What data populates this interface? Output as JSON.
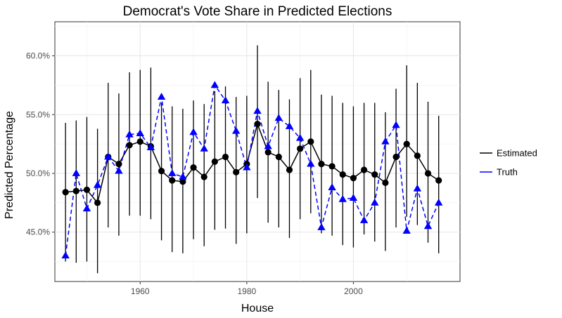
{
  "chart_data": {
    "type": "line",
    "title": "Democrat's Vote Share in Predicted Elections",
    "xlabel": "House",
    "ylabel": "Predicted Percentage",
    "xlim": [
      1944,
      2020
    ],
    "ylim": [
      0.408,
      0.629
    ],
    "x_ticks": [
      1960,
      1980,
      2000
    ],
    "x_tick_labels": [
      "1960",
      "1980",
      "2000"
    ],
    "y_ticks": [
      0.45,
      0.5,
      0.55,
      0.6
    ],
    "y_tick_labels": [
      "45.0%",
      "50.0%",
      "55.0%",
      "60.0%"
    ],
    "grid": true,
    "legend_position": "right",
    "x": [
      1946,
      1948,
      1950,
      1952,
      1954,
      1956,
      1958,
      1960,
      1962,
      1964,
      1966,
      1968,
      1970,
      1972,
      1974,
      1976,
      1978,
      1980,
      1982,
      1984,
      1986,
      1988,
      1990,
      1992,
      1994,
      1996,
      1998,
      2000,
      2002,
      2004,
      2006,
      2008,
      2010,
      2012,
      2014,
      2016
    ],
    "series": [
      {
        "name": "Estimated",
        "color": "#000000",
        "line_style": "solid",
        "marker": "circle",
        "values": [
          0.484,
          0.485,
          0.486,
          0.475,
          0.514,
          0.508,
          0.524,
          0.527,
          0.523,
          0.502,
          0.494,
          0.493,
          0.505,
          0.497,
          0.51,
          0.514,
          0.501,
          0.508,
          0.542,
          0.518,
          0.514,
          0.503,
          0.521,
          0.527,
          0.508,
          0.506,
          0.499,
          0.496,
          0.503,
          0.499,
          0.492,
          0.514,
          0.525,
          0.515,
          0.5,
          0.494
        ],
        "lower": [
          0.425,
          0.424,
          0.425,
          0.415,
          0.454,
          0.447,
          0.464,
          0.464,
          0.461,
          0.443,
          0.433,
          0.432,
          0.444,
          0.438,
          0.452,
          0.453,
          0.44,
          0.449,
          0.479,
          0.458,
          0.454,
          0.445,
          0.461,
          0.466,
          0.449,
          0.447,
          0.439,
          0.437,
          0.448,
          0.442,
          0.434,
          0.454,
          0.463,
          0.456,
          0.441,
          0.432
        ],
        "upper": [
          0.543,
          0.545,
          0.548,
          0.538,
          0.577,
          0.568,
          0.586,
          0.588,
          0.59,
          0.56,
          0.557,
          0.555,
          0.562,
          0.559,
          0.57,
          0.574,
          0.565,
          0.566,
          0.609,
          0.578,
          0.571,
          0.563,
          0.581,
          0.588,
          0.567,
          0.566,
          0.56,
          0.557,
          0.56,
          0.56,
          0.552,
          0.572,
          0.592,
          0.577,
          0.561,
          0.549
        ]
      },
      {
        "name": "Truth",
        "color": "#0000ff",
        "line_style": "dashed",
        "marker": "triangle",
        "values": [
          0.43,
          0.5,
          0.47,
          0.49,
          0.514,
          0.502,
          0.533,
          0.534,
          0.522,
          0.565,
          0.5,
          0.497,
          0.535,
          0.521,
          0.575,
          0.562,
          0.536,
          0.505,
          0.553,
          0.523,
          0.547,
          0.54,
          0.53,
          0.508,
          0.454,
          0.488,
          0.478,
          0.479,
          0.46,
          0.475,
          0.527,
          0.541,
          0.451,
          0.487,
          0.455,
          0.475
        ]
      }
    ]
  }
}
